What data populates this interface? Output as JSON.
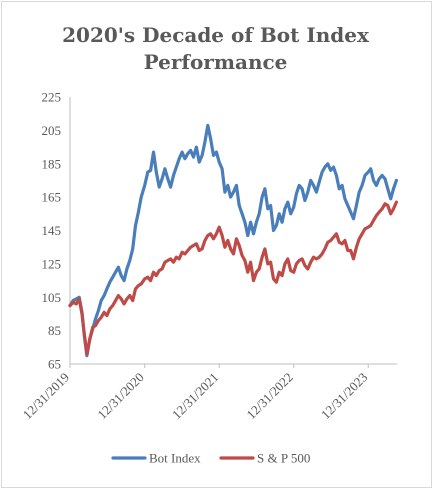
{
  "chart_data": {
    "type": "line",
    "title_line1": "2020's Decade of Bot Index",
    "title_line2": "Performance",
    "xlabel": "",
    "ylabel": "",
    "ylim": [
      65,
      225
    ],
    "y_ticks": [
      "225",
      "205",
      "185",
      "165",
      "145",
      "125",
      "105",
      "85",
      "65"
    ],
    "x_ticks": [
      "12/31/2019",
      "12/31/2020",
      "12/31/2021",
      "12/31/2022",
      "12/31/2023"
    ],
    "grid": false,
    "legend_position": "bottom",
    "colors": {
      "bot_index": "#4a7ebb",
      "sp500": "#be4b48"
    },
    "series": [
      {
        "name": "Bot Index",
        "color": "#4a7ebb",
        "points": [
          [
            "2019-12-31",
            100
          ],
          [
            "2020-01-15",
            103
          ],
          [
            "2020-01-31",
            104
          ],
          [
            "2020-02-14",
            105
          ],
          [
            "2020-02-28",
            96
          ],
          [
            "2020-03-10",
            82
          ],
          [
            "2020-03-23",
            70
          ],
          [
            "2020-04-06",
            80
          ],
          [
            "2020-04-20",
            86
          ],
          [
            "2020-05-04",
            92
          ],
          [
            "2020-05-18",
            97
          ],
          [
            "2020-06-01",
            103
          ],
          [
            "2020-06-15",
            106
          ],
          [
            "2020-06-29",
            110
          ],
          [
            "2020-07-13",
            114
          ],
          [
            "2020-07-27",
            117
          ],
          [
            "2020-08-10",
            120
          ],
          [
            "2020-08-24",
            123
          ],
          [
            "2020-09-07",
            118
          ],
          [
            "2020-09-21",
            115
          ],
          [
            "2020-10-05",
            122
          ],
          [
            "2020-10-19",
            127
          ],
          [
            "2020-11-02",
            134
          ],
          [
            "2020-11-16",
            148
          ],
          [
            "2020-11-30",
            156
          ],
          [
            "2020-12-14",
            165
          ],
          [
            "2020-12-31",
            172
          ],
          [
            "2021-01-15",
            180
          ],
          [
            "2021-01-29",
            181
          ],
          [
            "2021-02-12",
            192
          ],
          [
            "2021-02-26",
            180
          ],
          [
            "2021-03-12",
            171
          ],
          [
            "2021-03-26",
            176
          ],
          [
            "2021-04-09",
            182
          ],
          [
            "2021-04-23",
            176
          ],
          [
            "2021-05-07",
            171
          ],
          [
            "2021-05-21",
            178
          ],
          [
            "2021-06-04",
            183
          ],
          [
            "2021-06-18",
            188
          ],
          [
            "2021-07-02",
            192
          ],
          [
            "2021-07-16",
            188
          ],
          [
            "2021-07-30",
            191
          ],
          [
            "2021-08-13",
            193
          ],
          [
            "2021-08-27",
            189
          ],
          [
            "2021-09-10",
            195
          ],
          [
            "2021-09-24",
            186
          ],
          [
            "2021-10-08",
            190
          ],
          [
            "2021-10-22",
            198
          ],
          [
            "2021-11-05",
            208
          ],
          [
            "2021-11-19",
            200
          ],
          [
            "2021-12-03",
            190
          ],
          [
            "2021-12-17",
            192
          ],
          [
            "2021-12-31",
            186
          ],
          [
            "2022-01-14",
            182
          ],
          [
            "2022-01-28",
            168
          ],
          [
            "2022-02-11",
            172
          ],
          [
            "2022-02-25",
            165
          ],
          [
            "2022-03-11",
            168
          ],
          [
            "2022-03-25",
            172
          ],
          [
            "2022-04-08",
            160
          ],
          [
            "2022-04-22",
            155
          ],
          [
            "2022-05-06",
            150
          ],
          [
            "2022-05-20",
            142
          ],
          [
            "2022-06-03",
            150
          ],
          [
            "2022-06-17",
            143
          ],
          [
            "2022-07-01",
            150
          ],
          [
            "2022-07-15",
            155
          ],
          [
            "2022-07-29",
            165
          ],
          [
            "2022-08-12",
            170
          ],
          [
            "2022-08-26",
            158
          ],
          [
            "2022-09-09",
            160
          ],
          [
            "2022-09-23",
            145
          ],
          [
            "2022-10-07",
            148
          ],
          [
            "2022-10-21",
            155
          ],
          [
            "2022-11-04",
            150
          ],
          [
            "2022-11-18",
            158
          ],
          [
            "2022-12-02",
            162
          ],
          [
            "2022-12-16",
            155
          ],
          [
            "2022-12-31",
            159
          ],
          [
            "2023-01-13",
            167
          ],
          [
            "2023-01-27",
            172
          ],
          [
            "2023-02-10",
            170
          ],
          [
            "2023-02-24",
            163
          ],
          [
            "2023-03-10",
            168
          ],
          [
            "2023-03-24",
            175
          ],
          [
            "2023-04-07",
            172
          ],
          [
            "2023-04-21",
            168
          ],
          [
            "2023-05-05",
            174
          ],
          [
            "2023-05-19",
            180
          ],
          [
            "2023-06-02",
            183
          ],
          [
            "2023-06-16",
            185
          ],
          [
            "2023-06-30",
            181
          ],
          [
            "2023-07-14",
            183
          ],
          [
            "2023-07-28",
            178
          ],
          [
            "2023-08-11",
            170
          ],
          [
            "2023-08-25",
            172
          ],
          [
            "2023-09-08",
            164
          ],
          [
            "2023-09-22",
            160
          ],
          [
            "2023-10-06",
            156
          ],
          [
            "2023-10-20",
            152
          ],
          [
            "2023-11-03",
            160
          ],
          [
            "2023-11-17",
            168
          ],
          [
            "2023-12-01",
            172
          ],
          [
            "2023-12-15",
            178
          ],
          [
            "2023-12-31",
            180
          ],
          [
            "2024-01-12",
            182
          ],
          [
            "2024-01-26",
            175
          ],
          [
            "2024-02-09",
            172
          ],
          [
            "2024-02-23",
            176
          ],
          [
            "2024-03-08",
            178
          ],
          [
            "2024-03-22",
            176
          ],
          [
            "2024-04-05",
            170
          ],
          [
            "2024-04-19",
            164
          ],
          [
            "2024-05-03",
            170
          ],
          [
            "2024-05-17",
            175
          ]
        ]
      },
      {
        "name": "S & P 500",
        "color": "#be4b48",
        "points": [
          [
            "2019-12-31",
            100
          ],
          [
            "2020-01-15",
            102
          ],
          [
            "2020-01-31",
            101
          ],
          [
            "2020-02-14",
            104
          ],
          [
            "2020-02-28",
            95
          ],
          [
            "2020-03-10",
            83
          ],
          [
            "2020-03-23",
            71
          ],
          [
            "2020-04-06",
            80
          ],
          [
            "2020-04-20",
            87
          ],
          [
            "2020-05-04",
            88
          ],
          [
            "2020-05-18",
            91
          ],
          [
            "2020-06-01",
            93
          ],
          [
            "2020-06-15",
            96
          ],
          [
            "2020-06-29",
            94
          ],
          [
            "2020-07-13",
            98
          ],
          [
            "2020-07-27",
            100
          ],
          [
            "2020-08-10",
            103
          ],
          [
            "2020-08-24",
            106
          ],
          [
            "2020-09-07",
            104
          ],
          [
            "2020-09-21",
            101
          ],
          [
            "2020-10-05",
            104
          ],
          [
            "2020-10-19",
            106
          ],
          [
            "2020-11-02",
            103
          ],
          [
            "2020-11-16",
            110
          ],
          [
            "2020-11-30",
            112
          ],
          [
            "2020-12-14",
            113
          ],
          [
            "2020-12-31",
            116
          ],
          [
            "2021-01-15",
            117
          ],
          [
            "2021-01-29",
            115
          ],
          [
            "2021-02-12",
            120
          ],
          [
            "2021-02-26",
            118
          ],
          [
            "2021-03-12",
            121
          ],
          [
            "2021-03-26",
            122
          ],
          [
            "2021-04-09",
            126
          ],
          [
            "2021-04-23",
            127
          ],
          [
            "2021-05-07",
            128
          ],
          [
            "2021-05-21",
            126
          ],
          [
            "2021-06-04",
            129
          ],
          [
            "2021-06-18",
            128
          ],
          [
            "2021-07-02",
            132
          ],
          [
            "2021-07-16",
            131
          ],
          [
            "2021-07-30",
            133
          ],
          [
            "2021-08-13",
            135
          ],
          [
            "2021-08-27",
            136
          ],
          [
            "2021-09-10",
            137
          ],
          [
            "2021-09-24",
            133
          ],
          [
            "2021-10-08",
            134
          ],
          [
            "2021-10-22",
            139
          ],
          [
            "2021-11-05",
            142
          ],
          [
            "2021-11-19",
            143
          ],
          [
            "2021-12-03",
            140
          ],
          [
            "2021-12-17",
            143
          ],
          [
            "2021-12-31",
            147
          ],
          [
            "2022-01-14",
            142
          ],
          [
            "2022-01-28",
            135
          ],
          [
            "2022-02-11",
            139
          ],
          [
            "2022-02-25",
            134
          ],
          [
            "2022-03-11",
            131
          ],
          [
            "2022-03-25",
            140
          ],
          [
            "2022-04-08",
            136
          ],
          [
            "2022-04-22",
            130
          ],
          [
            "2022-05-06",
            127
          ],
          [
            "2022-05-20",
            120
          ],
          [
            "2022-06-03",
            126
          ],
          [
            "2022-06-17",
            115
          ],
          [
            "2022-07-01",
            120
          ],
          [
            "2022-07-15",
            122
          ],
          [
            "2022-07-29",
            129
          ],
          [
            "2022-08-12",
            134
          ],
          [
            "2022-08-26",
            125
          ],
          [
            "2022-09-09",
            126
          ],
          [
            "2022-09-23",
            116
          ],
          [
            "2022-10-07",
            114
          ],
          [
            "2022-10-21",
            120
          ],
          [
            "2022-11-04",
            118
          ],
          [
            "2022-11-18",
            125
          ],
          [
            "2022-12-02",
            128
          ],
          [
            "2022-12-16",
            121
          ],
          [
            "2022-12-31",
            120
          ],
          [
            "2023-01-13",
            125
          ],
          [
            "2023-01-27",
            127
          ],
          [
            "2023-02-10",
            128
          ],
          [
            "2023-02-24",
            124
          ],
          [
            "2023-03-10",
            122
          ],
          [
            "2023-03-24",
            126
          ],
          [
            "2023-04-07",
            129
          ],
          [
            "2023-04-21",
            128
          ],
          [
            "2023-05-05",
            129
          ],
          [
            "2023-05-19",
            131
          ],
          [
            "2023-06-02",
            134
          ],
          [
            "2023-06-16",
            138
          ],
          [
            "2023-06-30",
            139
          ],
          [
            "2023-07-14",
            141
          ],
          [
            "2023-07-28",
            143
          ],
          [
            "2023-08-11",
            138
          ],
          [
            "2023-08-25",
            137
          ],
          [
            "2023-09-08",
            139
          ],
          [
            "2023-09-22",
            133
          ],
          [
            "2023-10-06",
            133
          ],
          [
            "2023-10-20",
            128
          ],
          [
            "2023-11-03",
            135
          ],
          [
            "2023-11-17",
            140
          ],
          [
            "2023-12-01",
            143
          ],
          [
            "2023-12-15",
            146
          ],
          [
            "2023-12-31",
            147
          ],
          [
            "2024-01-12",
            148
          ],
          [
            "2024-01-26",
            151
          ],
          [
            "2024-02-09",
            154
          ],
          [
            "2024-02-23",
            156
          ],
          [
            "2024-03-08",
            158
          ],
          [
            "2024-03-22",
            161
          ],
          [
            "2024-04-05",
            160
          ],
          [
            "2024-04-19",
            155
          ],
          [
            "2024-05-03",
            158
          ],
          [
            "2024-05-17",
            162
          ]
        ]
      }
    ]
  }
}
